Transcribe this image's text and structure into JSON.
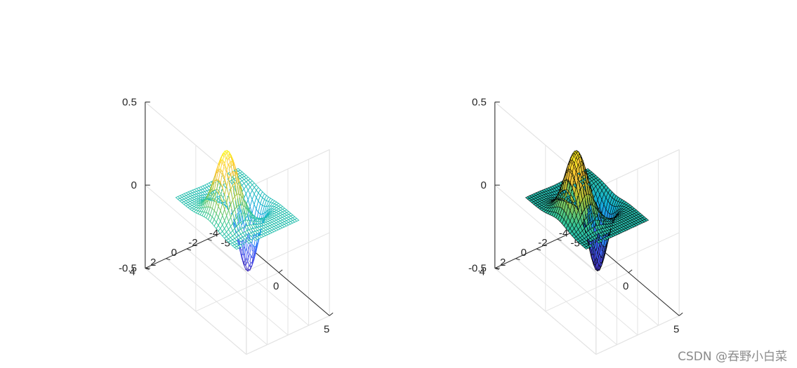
{
  "chart_data": [
    {
      "type": "surface",
      "style": "mesh",
      "function": "z = x*exp(-x^2-y^2) rotated view (3-D peak/valley surface)",
      "xlim": [
        -5,
        5
      ],
      "ylim": [
        -4,
        4
      ],
      "zlim": [
        -0.5,
        0.5
      ],
      "xticks": [
        "-5",
        "0",
        "5"
      ],
      "yticks": [
        "-4",
        "-2",
        "0",
        "2",
        "4"
      ],
      "zticks": [
        "-0.5",
        "0",
        "0.5"
      ],
      "zmax": 0.4,
      "zmin": -0.43,
      "colormap": "parula",
      "grid": true,
      "title": "",
      "xlabel": "",
      "ylabel": "",
      "zlabel": ""
    },
    {
      "type": "surface",
      "style": "surf",
      "function": "z = x*exp(-x^2-y^2) rotated view (3-D peak/valley surface)",
      "xlim": [
        -5,
        5
      ],
      "ylim": [
        -4,
        4
      ],
      "zlim": [
        -0.5,
        0.5
      ],
      "xticks": [
        "-5",
        "0",
        "5"
      ],
      "yticks": [
        "-4",
        "-2",
        "0",
        "2",
        "4"
      ],
      "zticks": [
        "-0.5",
        "0",
        "0.5"
      ],
      "zmax": 0.4,
      "zmin": -0.43,
      "colormap": "parula",
      "edge_color": "#000000",
      "grid": true,
      "title": "",
      "xlabel": "",
      "ylabel": "",
      "zlabel": ""
    }
  ],
  "watermark": "CSDN @吞野小白菜"
}
